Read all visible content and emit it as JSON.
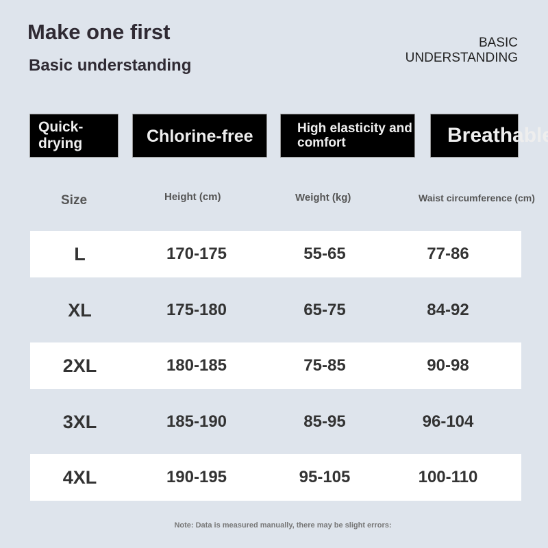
{
  "title": "Make one first",
  "subtitle": "Basic understanding",
  "right_label_1": "BASIC",
  "right_label_2": "UNDERSTANDING",
  "features": [
    "Quick-drying",
    "Chlorine-free",
    "High elasticity and comfort",
    "Breathable"
  ],
  "table": {
    "headers": [
      "Size",
      "Height (cm)",
      "Weight (kg)",
      "Waist circumference (cm)"
    ],
    "rows": [
      [
        "L",
        "170-175",
        "55-65",
        "77-86"
      ],
      [
        "XL",
        "175-180",
        "65-75",
        "84-92"
      ],
      [
        "2XL",
        "180-185",
        "75-85",
        "90-98"
      ],
      [
        "3XL",
        "185-190",
        "85-95",
        "96-104"
      ],
      [
        "4XL",
        "190-195",
        "95-105",
        "100-110"
      ]
    ]
  },
  "note": "Note: Data is measured manually, there may be slight errors:"
}
